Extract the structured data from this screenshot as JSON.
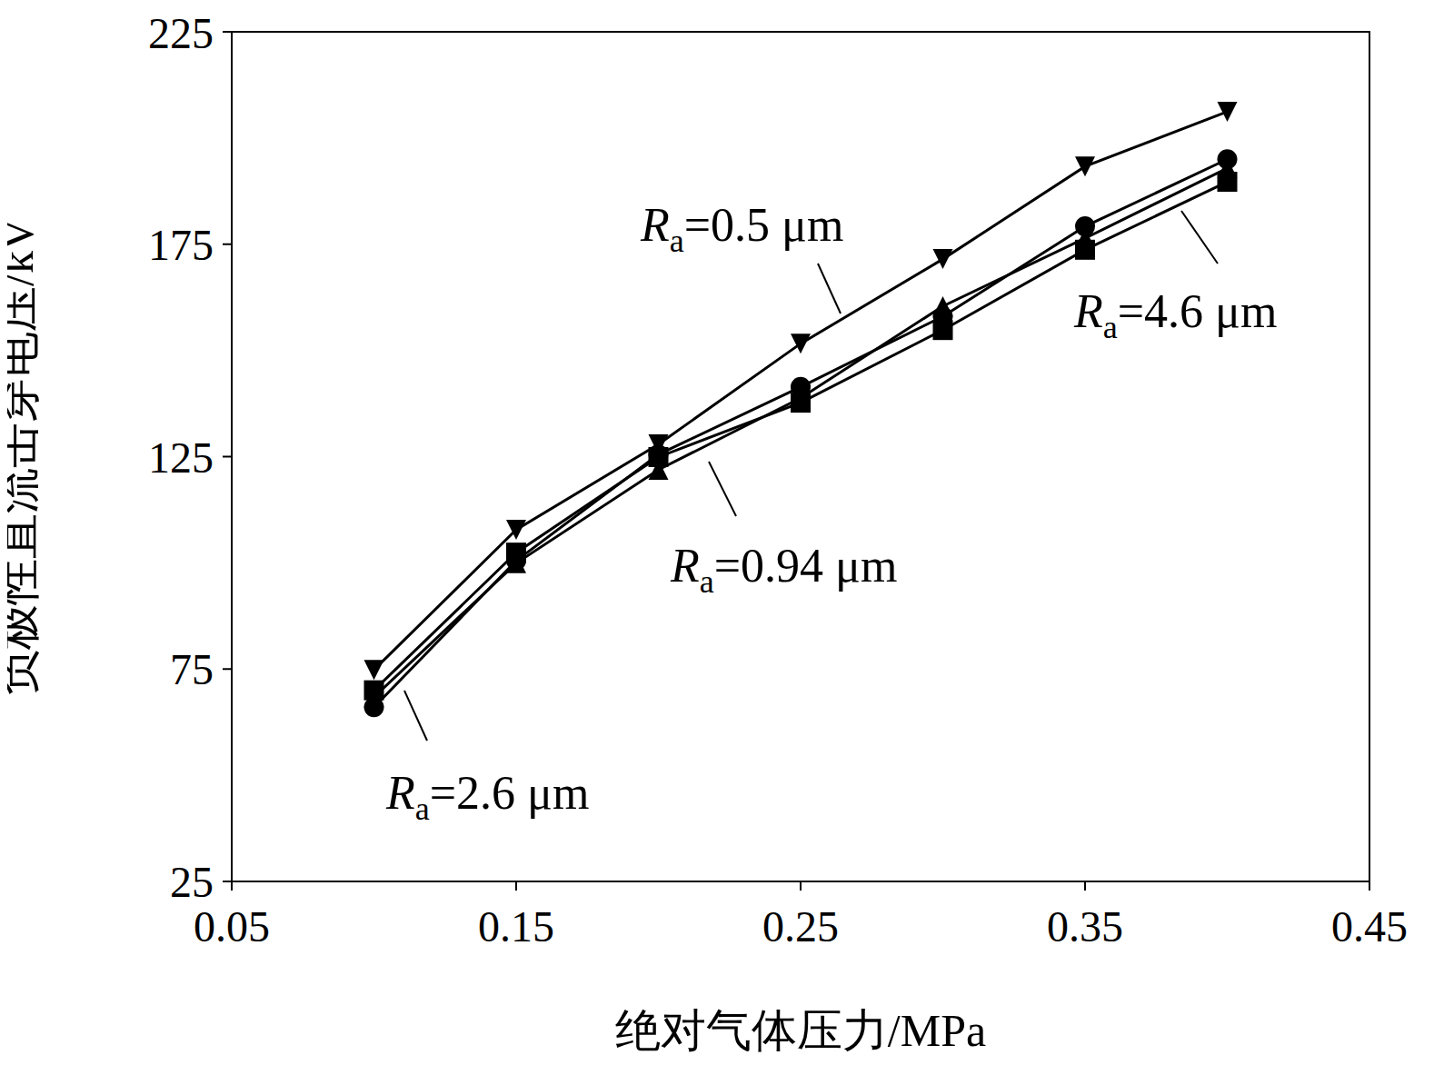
{
  "chart_data": {
    "type": "line",
    "x_label": "绝对气体压力/MPa",
    "y_label": "负极性直流击穿电压/kV",
    "x": [
      0.1,
      0.15,
      0.2,
      0.25,
      0.3,
      0.35,
      0.4
    ],
    "xlim": [
      0.05,
      0.45
    ],
    "xticks": [
      0.05,
      0.15,
      0.25,
      0.35,
      0.45
    ],
    "ylim": [
      25,
      225
    ],
    "yticks": [
      25,
      75,
      125,
      175,
      225
    ],
    "grid": false,
    "series": [
      {
        "name": "Ra=0.5 μm",
        "color": "#000000",
        "marker": "triangle-down",
        "values": [
          74.8,
          107.8,
          127.9,
          151.6,
          171.5,
          193.3,
          206.2
        ]
      },
      {
        "name": "Ra=0.94 μm",
        "color": "#000000",
        "marker": "triangle-up",
        "values": [
          68.4,
          99.9,
          121.9,
          138.8,
          160.4,
          176.4,
          192.9
        ]
      },
      {
        "name": "Ra=2.6 μm",
        "color": "#000000",
        "marker": "circle",
        "values": [
          66,
          100.5,
          125.5,
          141.4,
          158,
          179.2,
          195
        ]
      },
      {
        "name": "Ra=4.6 μm",
        "color": "#000000",
        "marker": "square",
        "values": [
          70,
          102.4,
          124.9,
          137.7,
          154.8,
          173.7,
          189.7
        ]
      }
    ]
  }
}
